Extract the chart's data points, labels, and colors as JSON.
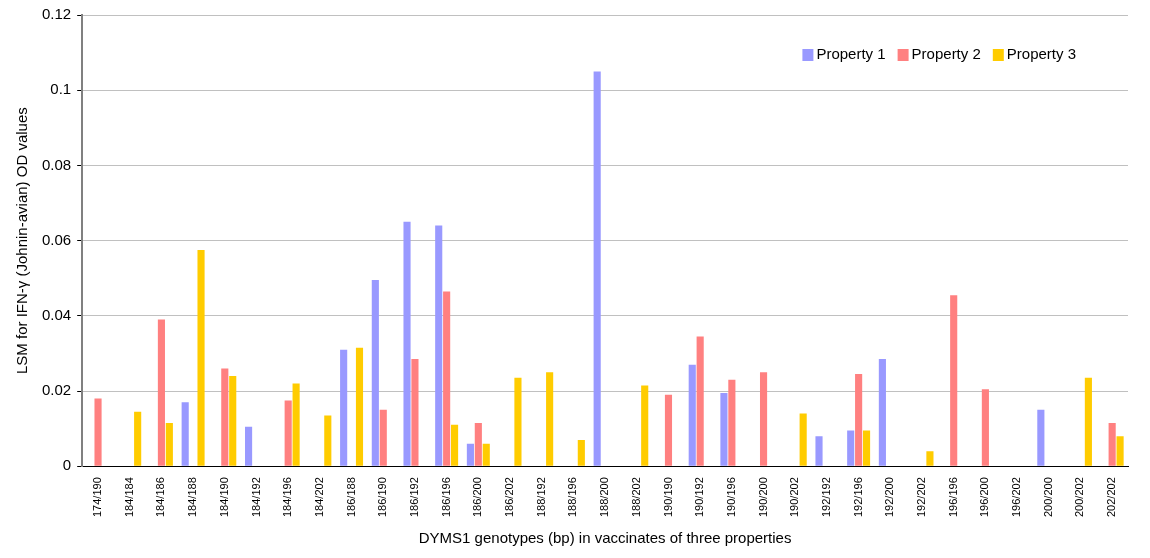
{
  "chart_data": {
    "type": "bar",
    "xlabel": "DYMS1 genotypes (bp) in vaccinates of three properties",
    "ylabel": "LSM for IFN-γ (Johnin-avian) OD values",
    "categories": [
      "174/190",
      "184/184",
      "184/186",
      "184/188",
      "184/190",
      "184/192",
      "184/196",
      "184/202",
      "186/188",
      "186/190",
      "186/192",
      "186/196",
      "186/200",
      "186/202",
      "188/192",
      "188/196",
      "188/200",
      "188/202",
      "190/190",
      "190/192",
      "190/196",
      "190/200",
      "190/202",
      "192/192",
      "192/196",
      "192/200",
      "192/202",
      "196/196",
      "196/200",
      "196/202",
      "200/200",
      "200/202",
      "202/202"
    ],
    "series": [
      {
        "name": "Property 1",
        "color": "#9999ff",
        "values": [
          null,
          null,
          null,
          0.017,
          null,
          0.0105,
          null,
          null,
          0.031,
          0.0495,
          0.065,
          0.064,
          0.006,
          null,
          null,
          null,
          0.105,
          null,
          null,
          0.027,
          0.0195,
          null,
          null,
          0.008,
          0.0095,
          0.0285,
          null,
          null,
          null,
          null,
          0.015,
          null,
          null
        ]
      },
      {
        "name": "Property 2",
        "color": "#ff8080",
        "values": [
          0.018,
          null,
          0.039,
          null,
          0.026,
          null,
          0.0175,
          null,
          null,
          0.015,
          0.0285,
          0.0465,
          0.0115,
          null,
          null,
          null,
          null,
          null,
          0.019,
          0.0345,
          0.023,
          0.025,
          null,
          null,
          0.0245,
          null,
          null,
          0.0455,
          0.0205,
          null,
          null,
          null,
          0.0115
        ]
      },
      {
        "name": "Property 3",
        "color": "#ffcc00",
        "values": [
          null,
          0.0145,
          0.0115,
          0.0575,
          0.024,
          null,
          0.022,
          0.0135,
          0.0315,
          null,
          null,
          0.011,
          0.006,
          0.0235,
          0.025,
          0.007,
          null,
          0.0215,
          null,
          null,
          null,
          null,
          0.014,
          null,
          0.0095,
          null,
          0.004,
          null,
          null,
          null,
          null,
          0.0235,
          0.008
        ]
      }
    ],
    "ylim": [
      0,
      0.12
    ],
    "yticks": [
      0,
      0.02,
      0.04,
      0.06,
      0.08,
      0.1,
      0.12
    ],
    "grid": "y",
    "legend": "top right"
  }
}
